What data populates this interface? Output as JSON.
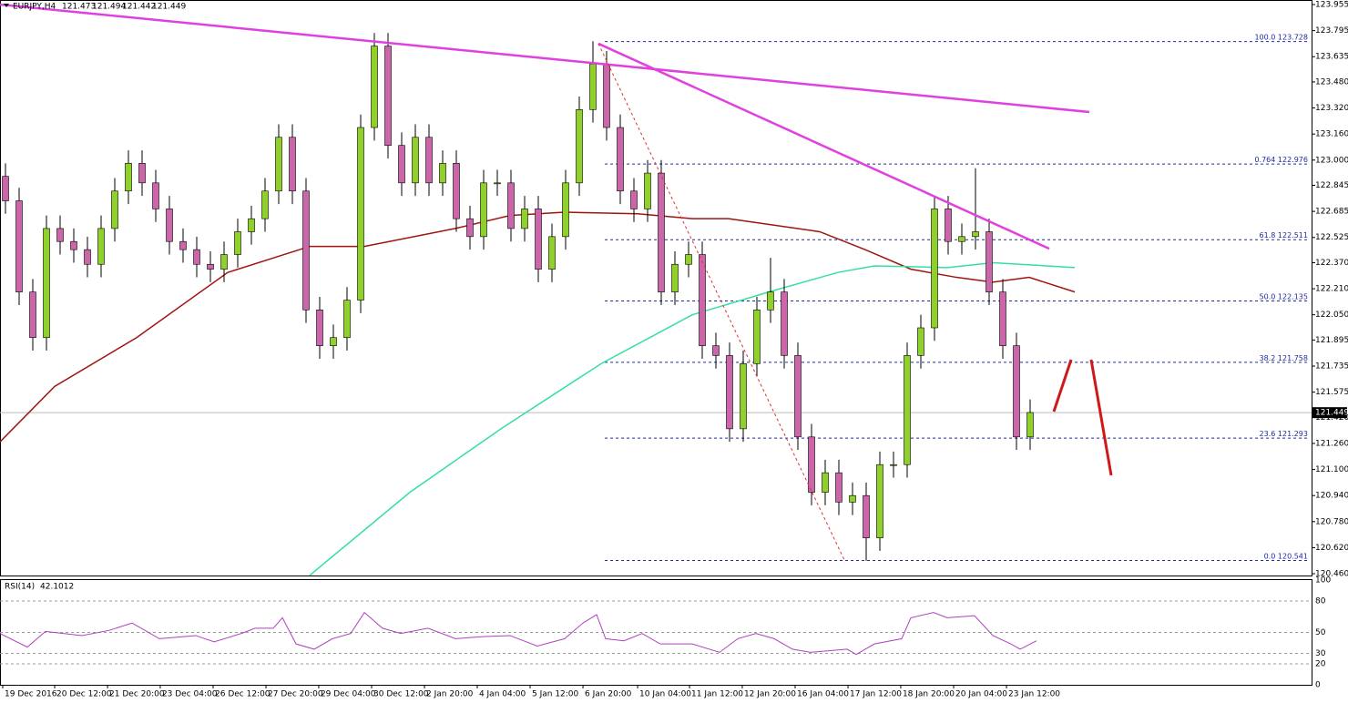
{
  "chart_data": {
    "type": "candlestick",
    "symbol": "EURJPY,H4",
    "ohlc": [
      121.473,
      121.494,
      121.442,
      121.449
    ],
    "xlim": [
      -0.4,
      95.6
    ],
    "xticks": [
      {
        "value": -0.2,
        "label": "19 Dec 2016"
      },
      {
        "value": 3.6,
        "label": "20 Dec 12:00"
      },
      {
        "value": 7.47,
        "label": "21 Dec 20:00"
      },
      {
        "value": 11.33,
        "label": "23 Dec 04:00"
      },
      {
        "value": 15.2,
        "label": "26 Dec 12:00"
      },
      {
        "value": 19.07,
        "label": "27 Dec 20:00"
      },
      {
        "value": 22.93,
        "label": "29 Dec 04:00"
      },
      {
        "value": 26.8,
        "label": "30 Dec 12:00"
      },
      {
        "value": 30.67,
        "label": "2 Jan 20:00"
      },
      {
        "value": 34.53,
        "label": "4 Jan 04:00"
      },
      {
        "value": 38.4,
        "label": "5 Jan 12:00"
      },
      {
        "value": 42.27,
        "label": "6 Jan 20:00"
      },
      {
        "value": 46.27,
        "label": "10 Jan 04:00"
      },
      {
        "value": 50.07,
        "label": "11 Jan 12:00"
      },
      {
        "value": 53.93,
        "label": "12 Jan 20:00"
      },
      {
        "value": 57.8,
        "label": "16 Jan 04:00"
      },
      {
        "value": 61.67,
        "label": "17 Jan 12:00"
      },
      {
        "value": 65.53,
        "label": "18 Jan 20:00"
      },
      {
        "value": 69.4,
        "label": "20 Jan 04:00"
      },
      {
        "value": 73.27,
        "label": "23 Jan 12:00"
      }
    ],
    "ylim": [
      120.449,
      123.983
    ],
    "yticks": [
      123.955,
      123.795,
      123.635,
      {
        "value": 123.48,
        "label": "123.480"
      },
      {
        "value": 123.32,
        "label": "123.320"
      },
      {
        "value": 123.16,
        "label": "123.160"
      },
      {
        "value": 123.0,
        "label": "123.000"
      },
      122.845,
      122.685,
      122.525,
      {
        "value": 122.37,
        "label": "122.370"
      },
      {
        "value": 122.21,
        "label": "122.210"
      },
      {
        "value": 122.05,
        "label": "122.050"
      },
      121.895,
      121.735,
      121.575,
      {
        "value": 121.42,
        "label": "121.420"
      },
      {
        "value": 121.26,
        "label": "121.260"
      },
      {
        "value": 121.1,
        "label": "121.100"
      },
      {
        "value": 120.94,
        "label": "120.940"
      },
      {
        "value": 120.78,
        "label": "120.780"
      },
      {
        "value": 120.62,
        "label": "120.620"
      },
      {
        "value": 120.46,
        "label": "120.460"
      }
    ],
    "up_color": "#8fd12a",
    "down_color": "#cc66aa",
    "candles": {
      "open": [
        122.9,
        122.75,
        122.19,
        121.91,
        122.58,
        122.5,
        122.45,
        122.36,
        122.58,
        122.81,
        122.98,
        122.86,
        122.7,
        122.5,
        122.45,
        122.36,
        122.33,
        122.42,
        122.56,
        122.64,
        122.81,
        123.14,
        122.81,
        122.08,
        121.86,
        121.91,
        122.14,
        123.2,
        123.7,
        123.09,
        122.86,
        123.14,
        122.86,
        122.98,
        122.64,
        122.53,
        122.86,
        122.86,
        122.58,
        122.7,
        122.33,
        122.53,
        122.86,
        123.31,
        123.59,
        123.2,
        122.81,
        122.7,
        122.92,
        122.19,
        122.36,
        122.42,
        121.86,
        121.8,
        121.35,
        121.75,
        122.08,
        122.19,
        121.8,
        121.3,
        120.96,
        121.08,
        120.9,
        120.94,
        120.68,
        121.13,
        121.13,
        121.8,
        121.97,
        122.7,
        122.5,
        122.53,
        122.56,
        122.19,
        121.86,
        121.3
      ],
      "high": [
        122.98,
        122.83,
        122.27,
        122.66,
        122.66,
        122.58,
        122.53,
        122.66,
        122.89,
        123.06,
        123.06,
        122.94,
        122.78,
        122.58,
        122.53,
        122.44,
        122.5,
        122.64,
        122.72,
        122.89,
        123.22,
        123.22,
        122.89,
        122.16,
        121.99,
        122.22,
        123.28,
        123.78,
        123.78,
        123.17,
        123.22,
        123.22,
        123.06,
        123.06,
        122.72,
        122.94,
        122.94,
        122.94,
        122.78,
        122.78,
        122.61,
        122.94,
        123.39,
        123.73,
        123.67,
        123.28,
        122.89,
        123.0,
        123.0,
        122.44,
        122.5,
        122.5,
        121.94,
        121.88,
        121.83,
        122.16,
        122.4,
        122.27,
        121.88,
        121.38,
        121.16,
        121.16,
        121.02,
        121.02,
        121.21,
        121.21,
        121.88,
        122.05,
        122.78,
        122.78,
        122.61,
        122.95,
        122.64,
        122.27,
        121.94,
        121.53
      ],
      "low": [
        122.67,
        122.11,
        121.83,
        121.83,
        122.42,
        122.37,
        122.28,
        122.28,
        122.5,
        122.73,
        122.78,
        122.62,
        122.42,
        122.37,
        122.28,
        122.25,
        122.25,
        122.34,
        122.48,
        122.56,
        122.73,
        122.73,
        122.0,
        121.78,
        121.78,
        121.83,
        122.06,
        123.12,
        123.01,
        122.78,
        122.78,
        122.78,
        122.78,
        122.56,
        122.45,
        122.45,
        122.78,
        122.5,
        122.5,
        122.25,
        122.25,
        122.45,
        122.78,
        123.23,
        123.12,
        122.73,
        122.62,
        122.62,
        122.11,
        122.11,
        122.28,
        121.78,
        121.72,
        121.27,
        121.27,
        121.67,
        122.0,
        121.72,
        121.22,
        120.88,
        120.88,
        120.82,
        120.82,
        120.54,
        120.6,
        121.05,
        121.05,
        121.72,
        121.89,
        122.42,
        122.42,
        122.45,
        122.11,
        121.78,
        121.22,
        121.22
      ],
      "close": [
        122.75,
        122.19,
        121.91,
        122.58,
        122.5,
        122.45,
        122.36,
        122.58,
        122.81,
        122.98,
        122.86,
        122.7,
        122.5,
        122.45,
        122.36,
        122.33,
        122.42,
        122.56,
        122.64,
        122.81,
        123.14,
        122.81,
        122.08,
        121.86,
        121.91,
        122.14,
        123.2,
        123.7,
        123.09,
        122.86,
        123.14,
        122.86,
        122.98,
        122.64,
        122.53,
        122.86,
        122.86,
        122.58,
        122.7,
        122.33,
        122.53,
        122.86,
        123.31,
        123.59,
        123.2,
        122.81,
        122.7,
        122.92,
        122.19,
        122.36,
        122.42,
        121.86,
        121.8,
        121.35,
        121.75,
        122.08,
        122.19,
        121.8,
        121.3,
        120.96,
        121.08,
        120.9,
        120.94,
        120.68,
        121.13,
        121.13,
        121.8,
        121.97,
        122.7,
        122.5,
        122.53,
        122.56,
        122.19,
        121.86,
        121.3,
        121.45
      ]
    },
    "moving_averages": [
      {
        "color": "#a0140f",
        "x": [
          -0.4,
          3.6,
          9.6,
          16.27,
          22.27,
          26.27,
          32.93,
          36.93,
          40.93,
          46.27,
          50.27,
          52.93,
          59.6,
          62.93,
          66.27,
          69.6,
          72.27,
          74.93,
          78.27
        ],
        "values": [
          121.27,
          121.61,
          121.91,
          122.31,
          122.47,
          122.47,
          122.58,
          122.66,
          122.68,
          122.67,
          122.64,
          122.64,
          122.56,
          122.45,
          122.33,
          122.28,
          122.25,
          122.28,
          122.19
        ]
      },
      {
        "color": "#33e0a0",
        "x": [
          22.27,
          29.6,
          36.27,
          43.6,
          50.27,
          56.27,
          60.93,
          63.6,
          68.93,
          72.27,
          78.27
        ],
        "values": [
          120.45,
          120.96,
          121.35,
          121.75,
          122.05,
          122.2,
          122.31,
          122.35,
          122.34,
          122.37,
          122.34
        ]
      }
    ],
    "trend_lines": [
      {
        "color": "#e040e0",
        "x": [
          -0.4,
          79.33
        ],
        "values": [
          123.955,
          123.295
        ]
      },
      {
        "color": "#e040e0",
        "x": [
          43.4,
          76.4
        ],
        "values": [
          123.715,
          122.456
        ]
      }
    ],
    "fibonacci": {
      "color": "#1f2a9e",
      "x_start": 43.87,
      "levels": [
        {
          "level": "100.0",
          "value": 123.728
        },
        {
          "level": "0.764",
          "value": 122.976
        },
        {
          "level": "61.8",
          "value": 122.511
        },
        {
          "level": "50.0",
          "value": 122.135
        },
        {
          "level": "38.2",
          "value": 121.758
        },
        {
          "level": "23.6",
          "value": 121.293
        },
        {
          "level": "0.0",
          "value": 120.541
        }
      ]
    },
    "rsi": {
      "label": "RSI(14)",
      "value": 42.1012,
      "color": "#b040c0",
      "ylim": [
        0,
        100
      ],
      "yticks": [
        100,
        80,
        50,
        30,
        20,
        0
      ],
      "x": [
        -0.4,
        1.6,
        2.93,
        5.6,
        7.6,
        9.27,
        11.27,
        13.93,
        15.27,
        17.27,
        18.27,
        19.6,
        20.27,
        21.27,
        22.6,
        23.93,
        25.27,
        26.27,
        27.6,
        28.93,
        30.93,
        32.93,
        34.93,
        36.93,
        38.93,
        40.93,
        42.27,
        43.27,
        43.93,
        45.27,
        46.6,
        47.93,
        50.27,
        52.27,
        53.6,
        54.93,
        56.27,
        57.6,
        58.93,
        61.6,
        62.27,
        63.6,
        65.6,
        66.27,
        67.93,
        68.93,
        70.93,
        72.27,
        73.6,
        74.27,
        75.47
      ],
      "values": [
        49,
        36,
        51,
        47,
        52,
        59,
        44,
        47,
        41,
        49,
        54,
        54,
        64,
        39,
        34,
        44,
        49,
        69,
        54,
        49,
        54,
        44,
        46,
        47,
        37,
        44,
        59,
        67,
        44,
        42,
        49,
        39,
        39,
        31,
        44,
        49,
        44,
        34,
        31,
        34,
        29,
        39,
        44,
        64,
        69,
        64,
        66,
        47,
        39,
        34,
        42
      ]
    }
  }
}
